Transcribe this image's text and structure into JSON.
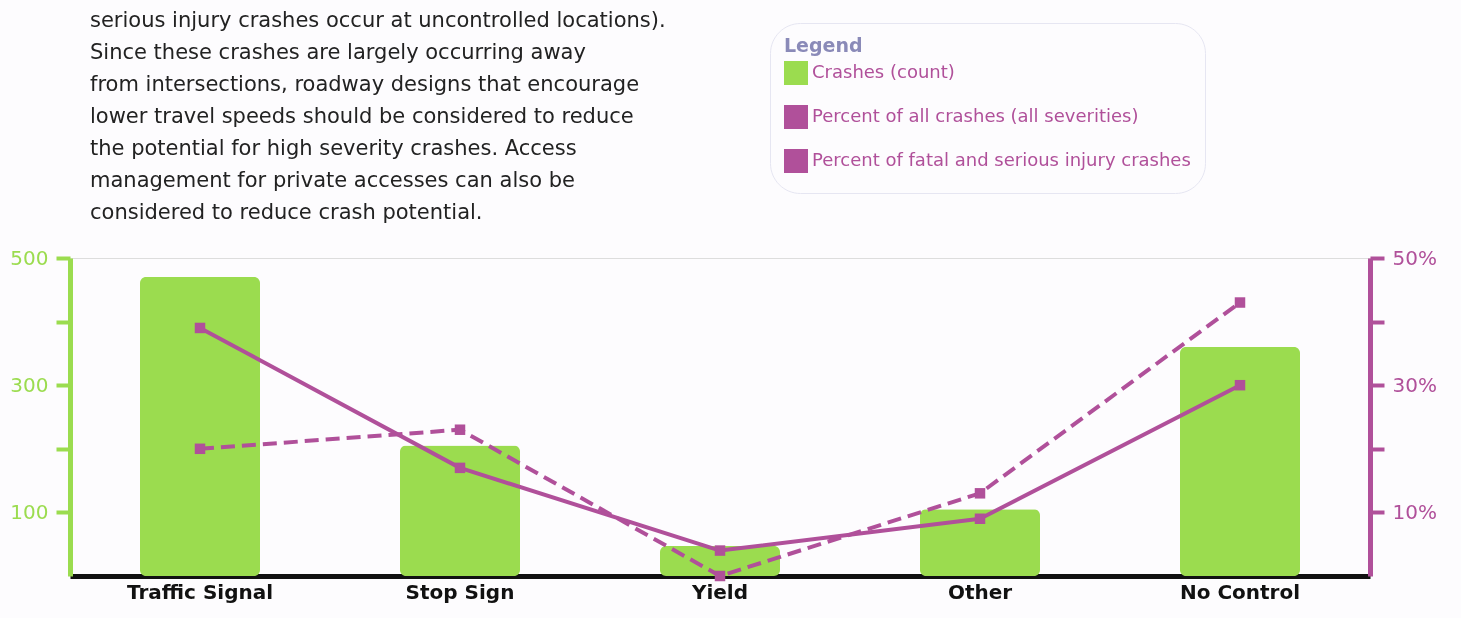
{
  "chart_data": {
    "type": "bar",
    "annotations": [
      "serious injury crashes occur at uncontrolled locations).\nSince these crashes are largely occurring away\nfrom intersections, roadway designs that encourage\nlower travel speeds should be considered to reduce\nthe potential for high severity crashes. Access\nmanagement for private accesses can also be\nconsidered to reduce crash potential."
    ],
    "categories": [
      "Traffic Signal",
      "Stop Sign",
      "Yield",
      "Other",
      "No Control"
    ],
    "series": [
      {
        "name": "Crashes (count)",
        "color": "#9bdc4f",
        "values": [
          470,
          205,
          47,
          105,
          360
        ]
      },
      {
        "name": "Percent of all crashes (all severities)",
        "type": "line",
        "axis": "y2",
        "line_style": "solid",
        "color": "#b0509a",
        "values": [
          39,
          17,
          4,
          9,
          30
        ]
      },
      {
        "name": "Percent of fatal and serious injury crashes",
        "type": "line",
        "axis": "y2",
        "line_style": "dashed",
        "color": "#b0509a",
        "values": [
          20,
          23,
          0,
          13,
          43
        ]
      }
    ],
    "ylim": [
      0,
      500
    ],
    "yticks": [
      100,
      {
        "value": 200,
        "label": null
      },
      300,
      {
        "value": 400,
        "label": null
      },
      500
    ],
    "y2lim": [
      0,
      50
    ],
    "y2ticks": [
      {
        "value": 10,
        "label": "10%"
      },
      {
        "value": 20,
        "label": null
      },
      {
        "value": 30,
        "label": "30%"
      },
      {
        "value": 40,
        "label": null
      },
      {
        "value": 50,
        "label": "50%"
      }
    ],
    "legend_title": "Legend",
    "legend": "top right",
    "marker": "square",
    "grid": false
  }
}
